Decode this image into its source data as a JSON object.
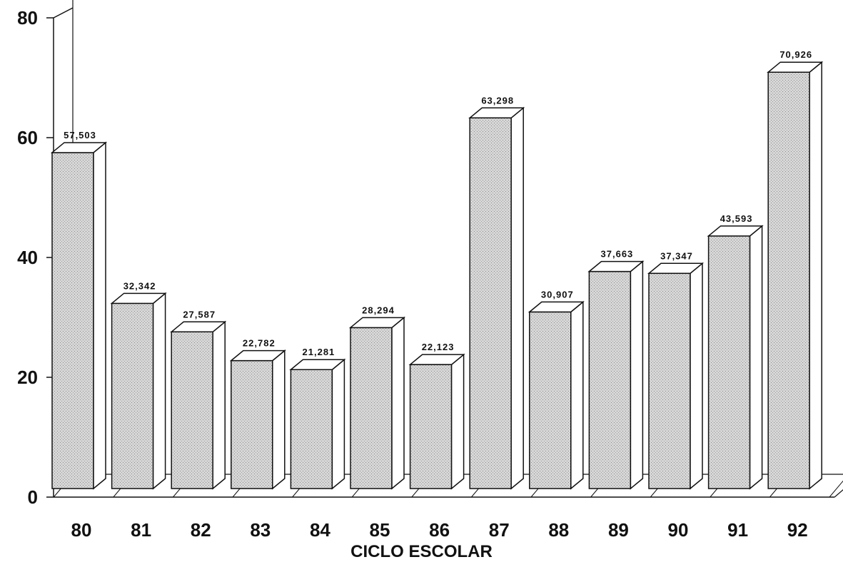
{
  "chart_data": {
    "type": "bar",
    "categories": [
      "80",
      "81",
      "82",
      "83",
      "84",
      "85",
      "86",
      "87",
      "88",
      "89",
      "90",
      "91",
      "92"
    ],
    "values": [
      57.503,
      32.342,
      27.587,
      22.782,
      21.281,
      28.294,
      22.123,
      63.298,
      30.907,
      37.663,
      37.347,
      43.593,
      70.926
    ],
    "value_labels": [
      "57,503",
      "32,342",
      "27,587",
      "22,782",
      "21,281",
      "28,294",
      "22,123",
      "63,298",
      "30,907",
      "37,663",
      "37,347",
      "43,593",
      "70,926"
    ],
    "y_ticks": [
      "0",
      "20",
      "40",
      "60",
      "80"
    ],
    "ylim": [
      0,
      80
    ],
    "xlabel": "CICLO ESCOLAR",
    "ylabel": "",
    "grid": false,
    "style": "3d",
    "colors": {
      "bar_face": "#d4d4d4",
      "bar_side": "#ffffff",
      "outline": "#111111"
    }
  }
}
